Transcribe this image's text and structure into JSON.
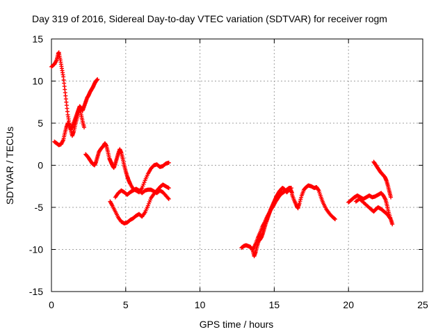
{
  "chart_data": {
    "type": "scatter",
    "title": "Day 319 of 2016, Sidereal Day-to-day VTEC variation (SDTVAR) for receiver rogm",
    "xlabel": "GPS time / hours",
    "ylabel": "SDTVAR / TECUs",
    "xlim": [
      0,
      25
    ],
    "ylim": [
      -15,
      15
    ],
    "xticks": [
      0,
      5,
      10,
      15,
      20,
      25
    ],
    "yticks": [
      -15,
      -10,
      -5,
      0,
      5,
      10,
      15
    ],
    "xtick_labels": [
      "0",
      "5",
      "10",
      "15",
      "20",
      "25"
    ],
    "ytick_labels": [
      "-15",
      "-10",
      "-5",
      "0",
      "5",
      "10",
      "15"
    ],
    "grid": true,
    "marker": "plus",
    "color": "#ff0000",
    "series": [
      {
        "segments": [
          [
            [
              0.0,
              11.7
            ],
            [
              0.2,
              12.0
            ],
            [
              0.35,
              12.5
            ],
            [
              0.45,
              13.2
            ],
            [
              0.5,
              13.4
            ],
            [
              0.6,
              12.5
            ],
            [
              0.7,
              11.5
            ],
            [
              0.8,
              10.5
            ],
            [
              0.9,
              9.0
            ],
            [
              1.0,
              7.5
            ],
            [
              1.1,
              6.0
            ],
            [
              1.2,
              5.0
            ],
            [
              1.3,
              4.3
            ],
            [
              1.4,
              4.5
            ],
            [
              1.5,
              5.0
            ],
            [
              1.6,
              5.5
            ],
            [
              1.7,
              6.0
            ],
            [
              1.8,
              6.5
            ],
            [
              1.9,
              7.0
            ],
            [
              2.0,
              6.8
            ],
            [
              2.1,
              6.5
            ],
            [
              2.2,
              7.0
            ],
            [
              2.3,
              7.5
            ],
            [
              2.4,
              8.0
            ],
            [
              2.5,
              8.3
            ],
            [
              2.6,
              8.7
            ],
            [
              2.7,
              9.0
            ],
            [
              2.8,
              9.3
            ],
            [
              2.9,
              9.7
            ],
            [
              3.0,
              10.0
            ],
            [
              3.1,
              10.2
            ]
          ],
          [
            [
              0.2,
              2.8
            ],
            [
              0.35,
              2.6
            ],
            [
              0.5,
              2.4
            ],
            [
              0.65,
              2.5
            ],
            [
              0.8,
              3.0
            ],
            [
              0.9,
              3.8
            ],
            [
              1.0,
              4.5
            ],
            [
              1.1,
              5.0
            ],
            [
              1.2,
              4.8
            ],
            [
              1.3,
              4.2
            ],
            [
              1.4,
              3.5
            ],
            [
              1.5,
              4.0
            ],
            [
              1.6,
              4.8
            ],
            [
              1.7,
              5.5
            ],
            [
              1.8,
              6.2
            ],
            [
              1.9,
              6.8
            ],
            [
              2.0,
              6.0
            ],
            [
              2.1,
              5.2
            ],
            [
              2.2,
              4.5
            ]
          ],
          [
            [
              2.3,
              1.3
            ],
            [
              2.45,
              1.0
            ],
            [
              2.6,
              0.6
            ],
            [
              2.75,
              0.2
            ],
            [
              2.9,
              0.0
            ],
            [
              3.0,
              0.4
            ],
            [
              3.1,
              1.0
            ],
            [
              3.2,
              1.6
            ],
            [
              3.35,
              2.0
            ],
            [
              3.5,
              2.3
            ],
            [
              3.6,
              2.6
            ],
            [
              3.7,
              2.3
            ],
            [
              3.8,
              1.6
            ],
            [
              3.9,
              0.8
            ],
            [
              4.0,
              0.4
            ],
            [
              4.1,
              0.0
            ],
            [
              4.2,
              -0.3
            ],
            [
              4.3,
              0.2
            ],
            [
              4.4,
              0.8
            ],
            [
              4.5,
              1.4
            ],
            [
              4.6,
              1.9
            ],
            [
              4.7,
              1.5
            ],
            [
              4.8,
              0.8
            ],
            [
              4.9,
              0.0
            ],
            [
              5.0,
              -0.7
            ],
            [
              5.1,
              -1.3
            ],
            [
              5.2,
              -1.8
            ],
            [
              5.3,
              -2.2
            ],
            [
              5.5,
              -2.8
            ],
            [
              5.7,
              -3.0
            ],
            [
              5.9,
              -3.2
            ],
            [
              6.1,
              -2.7
            ],
            [
              6.3,
              -1.8
            ],
            [
              6.5,
              -1.0
            ],
            [
              6.7,
              -0.4
            ],
            [
              6.9,
              0.0
            ],
            [
              7.1,
              0.1
            ],
            [
              7.3,
              -0.2
            ],
            [
              7.5,
              -0.1
            ],
            [
              7.7,
              0.2
            ],
            [
              7.9,
              0.3
            ]
          ],
          [
            [
              3.95,
              -4.3
            ],
            [
              4.1,
              -4.8
            ],
            [
              4.3,
              -5.5
            ],
            [
              4.5,
              -6.2
            ],
            [
              4.7,
              -6.7
            ],
            [
              4.9,
              -6.9
            ],
            [
              5.1,
              -6.8
            ],
            [
              5.3,
              -6.5
            ],
            [
              5.5,
              -6.3
            ],
            [
              5.7,
              -6.0
            ],
            [
              5.9,
              -5.8
            ],
            [
              6.1,
              -6.1
            ],
            [
              6.3,
              -5.6
            ],
            [
              6.5,
              -4.8
            ],
            [
              6.7,
              -3.9
            ],
            [
              6.9,
              -3.4
            ],
            [
              7.1,
              -3.0
            ],
            [
              7.3,
              -2.6
            ],
            [
              7.5,
              -2.3
            ],
            [
              7.7,
              -2.5
            ],
            [
              7.9,
              -2.7
            ]
          ],
          [
            [
              4.3,
              -3.8
            ],
            [
              4.5,
              -3.3
            ],
            [
              4.7,
              -3.0
            ],
            [
              4.9,
              -3.2
            ],
            [
              5.1,
              -3.5
            ],
            [
              5.3,
              -3.2
            ],
            [
              5.5,
              -3.0
            ],
            [
              5.7,
              -2.8
            ],
            [
              5.9,
              -3.0
            ],
            [
              6.1,
              -3.3
            ],
            [
              6.3,
              -3.0
            ],
            [
              6.5,
              -2.9
            ],
            [
              6.7,
              -2.9
            ],
            [
              6.9,
              -3.1
            ],
            [
              7.1,
              -3.3
            ],
            [
              7.3,
              -3.0
            ],
            [
              7.5,
              -3.2
            ],
            [
              7.7,
              -3.6
            ],
            [
              7.9,
              -4.0
            ]
          ],
          [
            [
              12.8,
              -9.8
            ],
            [
              12.95,
              -9.6
            ],
            [
              13.1,
              -9.5
            ],
            [
              13.25,
              -9.6
            ],
            [
              13.4,
              -9.7
            ],
            [
              13.55,
              -10.1
            ],
            [
              13.65,
              -10.8
            ],
            [
              13.75,
              -10.3
            ],
            [
              13.85,
              -9.6
            ],
            [
              13.95,
              -9.0
            ],
            [
              14.05,
              -8.8
            ],
            [
              14.15,
              -8.5
            ],
            [
              14.25,
              -8.0
            ],
            [
              14.35,
              -7.4
            ],
            [
              14.45,
              -6.8
            ],
            [
              14.55,
              -6.3
            ],
            [
              14.65,
              -5.8
            ],
            [
              14.75,
              -5.3
            ],
            [
              14.85,
              -4.9
            ],
            [
              14.95,
              -4.5
            ],
            [
              15.05,
              -4.1
            ],
            [
              15.15,
              -3.7
            ],
            [
              15.25,
              -3.4
            ],
            [
              15.35,
              -3.1
            ],
            [
              15.45,
              -2.9
            ],
            [
              15.55,
              -2.7
            ],
            [
              15.65,
              -2.8
            ],
            [
              15.75,
              -3.0
            ],
            [
              15.85,
              -3.2
            ],
            [
              15.95,
              -3.0
            ],
            [
              16.05,
              -2.7
            ],
            [
              16.15,
              -2.7
            ]
          ],
          [
            [
              13.6,
              -9.9
            ],
            [
              13.75,
              -9.3
            ],
            [
              13.9,
              -8.6
            ],
            [
              14.05,
              -8.0
            ],
            [
              14.2,
              -7.3
            ],
            [
              14.35,
              -6.8
            ],
            [
              14.5,
              -6.2
            ],
            [
              14.65,
              -5.7
            ],
            [
              14.8,
              -5.2
            ],
            [
              14.95,
              -4.8
            ],
            [
              15.1,
              -4.3
            ],
            [
              15.25,
              -3.9
            ],
            [
              15.4,
              -3.5
            ],
            [
              15.55,
              -3.3
            ],
            [
              15.7,
              -3.1
            ],
            [
              15.85,
              -2.9
            ],
            [
              16.0,
              -2.7
            ],
            [
              16.1,
              -2.9
            ],
            [
              16.2,
              -3.3
            ]
          ],
          [
            [
              16.2,
              -3.5
            ],
            [
              16.35,
              -4.2
            ],
            [
              16.5,
              -4.8
            ],
            [
              16.6,
              -5.1
            ],
            [
              16.7,
              -4.5
            ],
            [
              16.85,
              -3.6
            ],
            [
              17.0,
              -2.9
            ],
            [
              17.15,
              -2.6
            ],
            [
              17.3,
              -2.4
            ],
            [
              17.5,
              -2.5
            ],
            [
              17.7,
              -2.7
            ],
            [
              17.85,
              -2.6
            ],
            [
              18.0,
              -3.0
            ],
            [
              18.15,
              -3.8
            ],
            [
              18.3,
              -4.5
            ],
            [
              18.5,
              -5.2
            ],
            [
              18.7,
              -5.7
            ],
            [
              18.9,
              -6.1
            ],
            [
              19.1,
              -6.4
            ]
          ],
          [
            [
              20.0,
              -4.4
            ],
            [
              20.2,
              -4.1
            ],
            [
              20.4,
              -3.8
            ],
            [
              20.6,
              -3.6
            ],
            [
              20.8,
              -3.8
            ],
            [
              21.0,
              -4.0
            ],
            [
              21.2,
              -3.8
            ],
            [
              21.4,
              -3.6
            ],
            [
              21.6,
              -3.8
            ],
            [
              21.8,
              -3.7
            ],
            [
              22.0,
              -3.5
            ],
            [
              22.2,
              -3.3
            ],
            [
              22.35,
              -3.6
            ],
            [
              22.5,
              -4.1
            ],
            [
              22.6,
              -4.8
            ],
            [
              22.7,
              -5.6
            ],
            [
              22.85,
              -6.4
            ],
            [
              22.95,
              -7.0
            ]
          ],
          [
            [
              20.5,
              -4.3
            ],
            [
              20.75,
              -4.0
            ],
            [
              21.0,
              -4.4
            ],
            [
              21.25,
              -4.8
            ],
            [
              21.5,
              -5.2
            ],
            [
              21.7,
              -5.5
            ],
            [
              21.85,
              -5.2
            ],
            [
              22.0,
              -5.0
            ],
            [
              22.2,
              -5.2
            ],
            [
              22.4,
              -5.5
            ],
            [
              22.6,
              -5.8
            ],
            [
              22.8,
              -6.3
            ]
          ],
          [
            [
              21.7,
              0.4
            ],
            [
              21.85,
              0.0
            ],
            [
              22.0,
              -0.4
            ],
            [
              22.15,
              -0.8
            ],
            [
              22.3,
              -1.1
            ],
            [
              22.45,
              -1.4
            ],
            [
              22.55,
              -1.8
            ],
            [
              22.65,
              -2.4
            ],
            [
              22.75,
              -3.1
            ],
            [
              22.85,
              -3.8
            ]
          ]
        ]
      }
    ]
  }
}
